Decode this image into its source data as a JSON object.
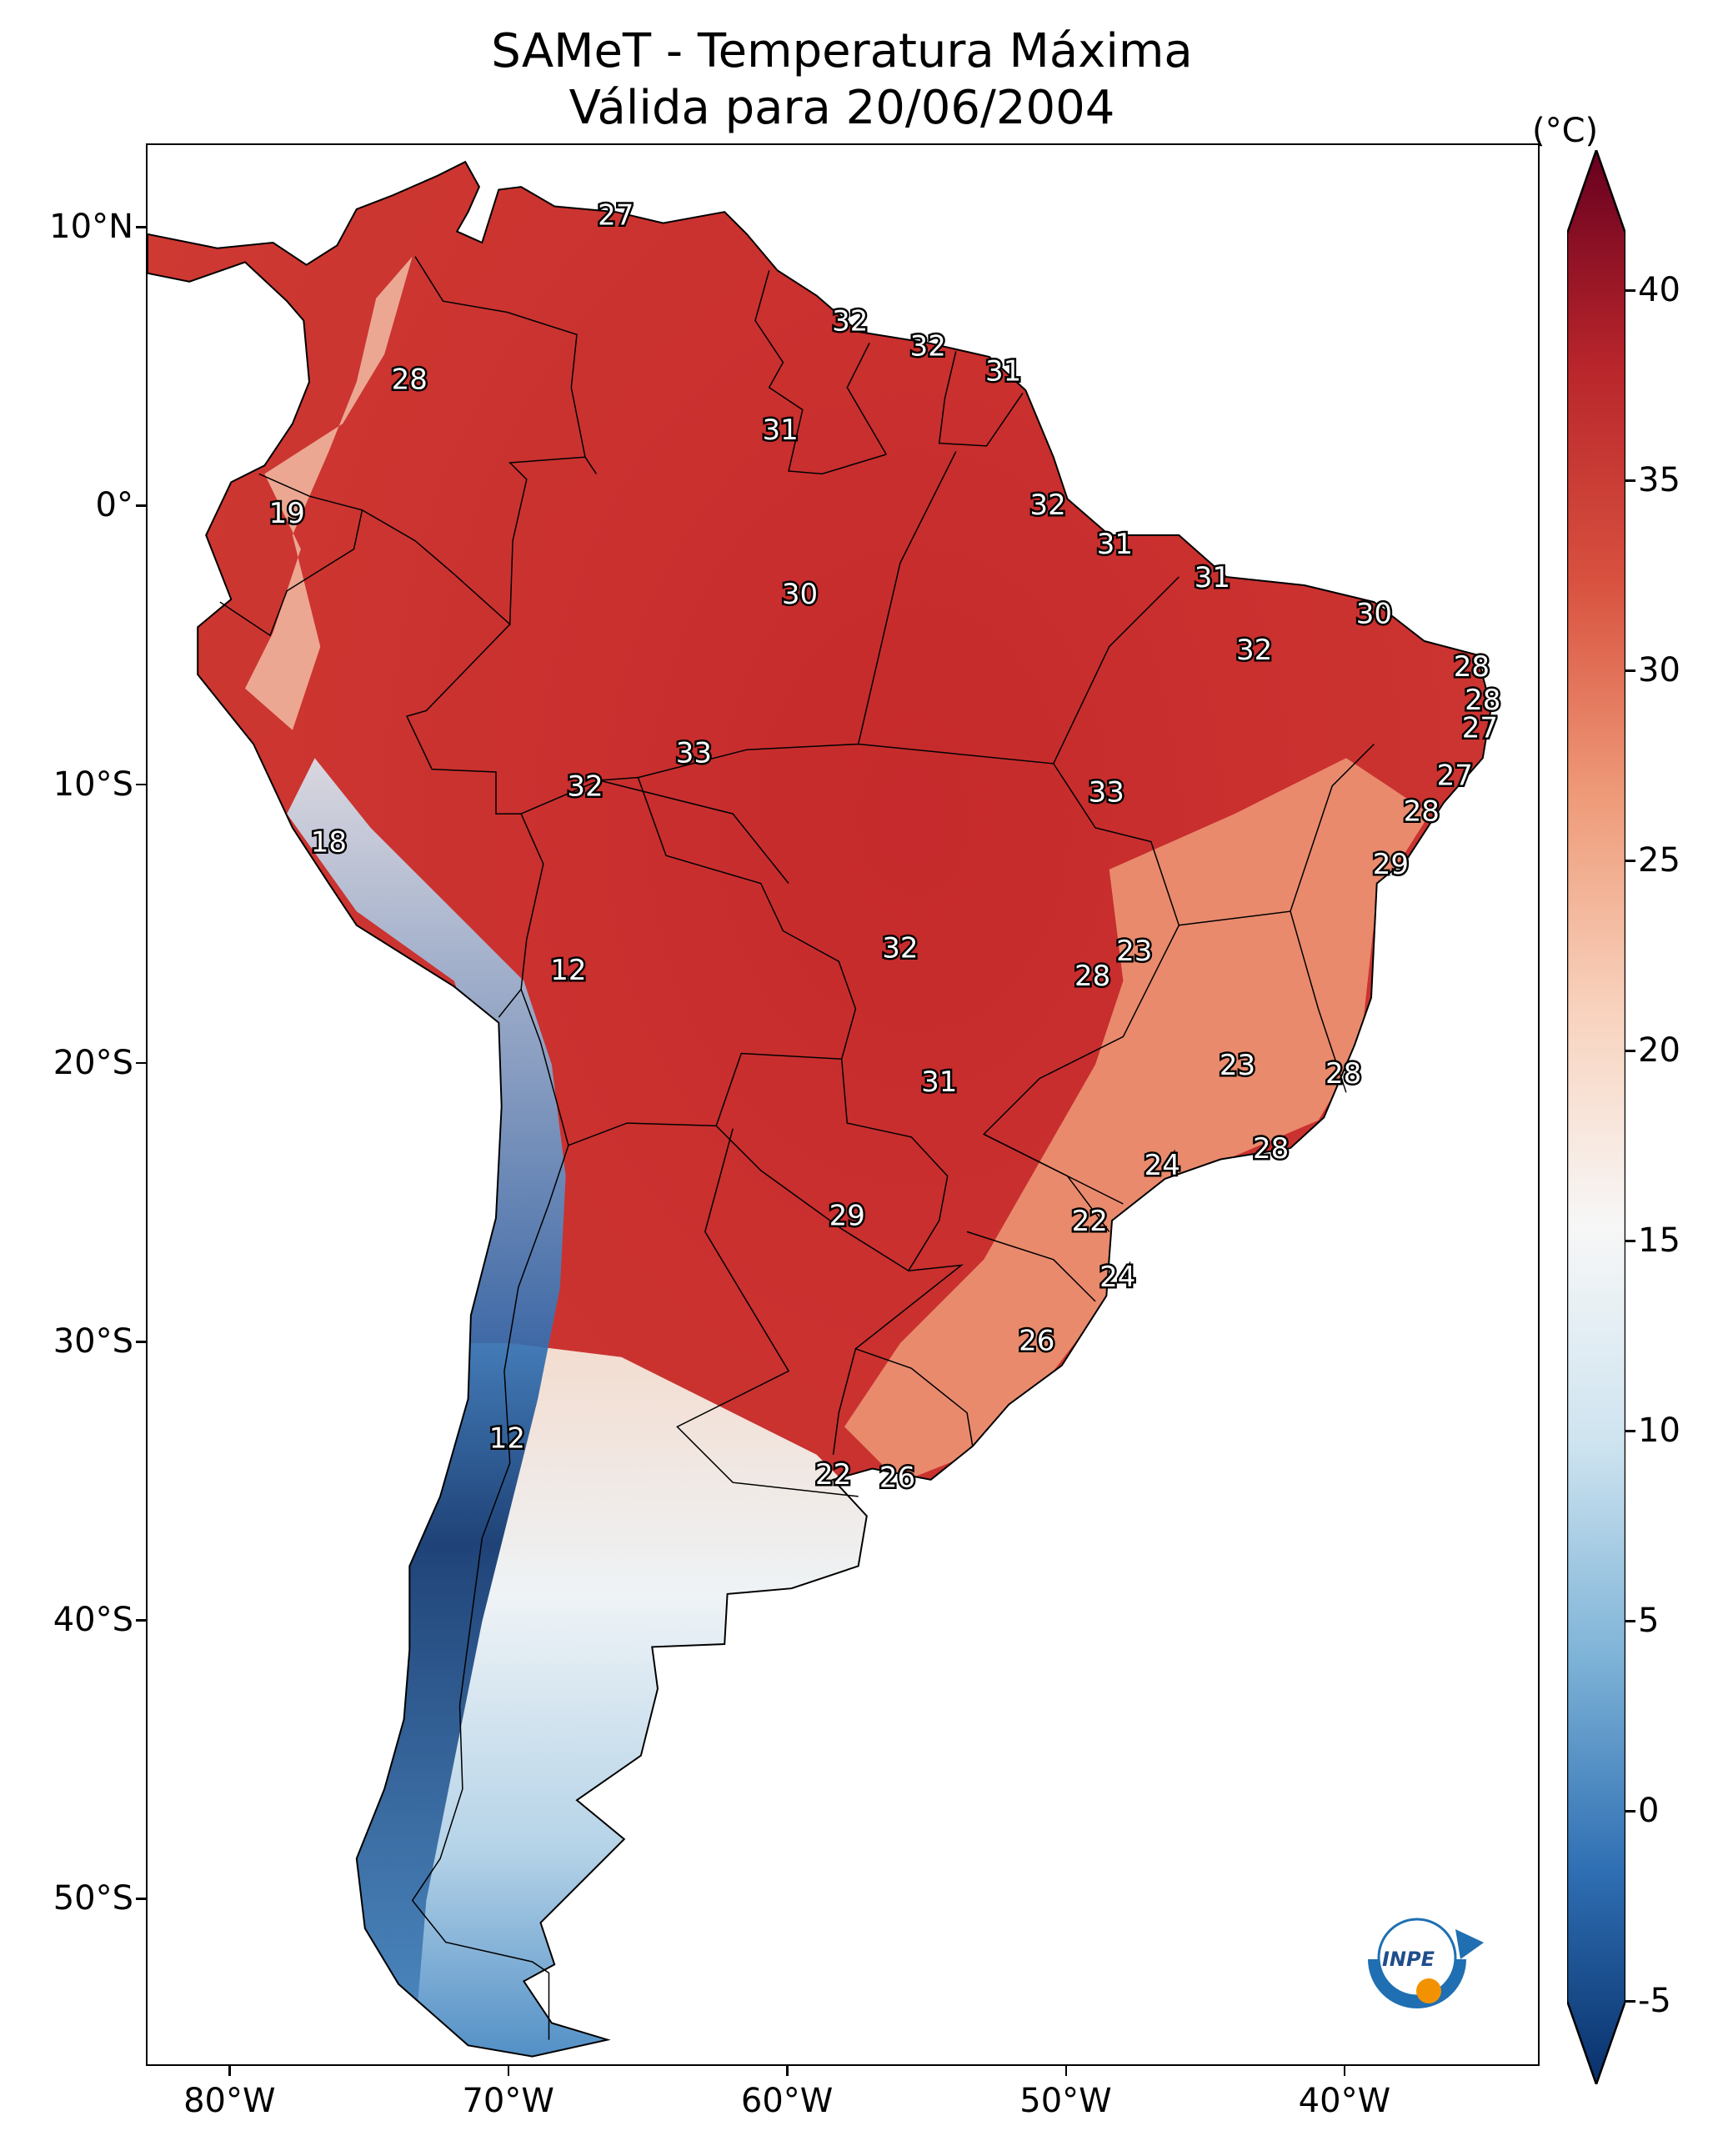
{
  "title": {
    "line1": "SAMeT - Temperatura Máxima",
    "line2": "Válida para 20/06/2004"
  },
  "colorbar": {
    "unit": "(°C)",
    "ticks": [
      "40",
      "35",
      "30",
      "25",
      "20",
      "15",
      "10",
      "5",
      "0",
      "-5"
    ],
    "tick_values": [
      40,
      35,
      30,
      25,
      20,
      15,
      10,
      5,
      0,
      -5
    ],
    "range": [
      -5,
      40
    ],
    "colors": [
      "#08306b",
      "#2f6fb3",
      "#7fb4d8",
      "#cfe4f0",
      "#f7f7f7",
      "#f8d2bd",
      "#ee9a78",
      "#d8513f",
      "#b8252b",
      "#67001f"
    ]
  },
  "axes": {
    "lat_labels": [
      "10°N",
      "0°",
      "10°S",
      "20°S",
      "30°S",
      "40°S",
      "50°S"
    ],
    "lat_values": [
      10,
      0,
      -10,
      -20,
      -30,
      -40,
      -50
    ],
    "lon_labels": [
      "80°W",
      "70°W",
      "60°W",
      "50°W",
      "40°W"
    ],
    "lon_values": [
      -80,
      -70,
      -60,
      -50,
      -40
    ],
    "lon_range": [
      -83,
      -33
    ],
    "lat_range": [
      13,
      -56
    ]
  },
  "temperature_labels": [
    {
      "text": "27",
      "lon": -66.2,
      "lat": 10.5
    },
    {
      "text": "32",
      "lon": -57.8,
      "lat": 6.7
    },
    {
      "text": "32",
      "lon": -55.0,
      "lat": 5.8
    },
    {
      "text": "31",
      "lon": -52.3,
      "lat": 4.9
    },
    {
      "text": "28",
      "lon": -73.6,
      "lat": 4.6
    },
    {
      "text": "31",
      "lon": -60.3,
      "lat": 2.8
    },
    {
      "text": "32",
      "lon": -50.7,
      "lat": 0.1
    },
    {
      "text": "19",
      "lon": -78.0,
      "lat": -0.2
    },
    {
      "text": "31",
      "lon": -48.3,
      "lat": -1.3
    },
    {
      "text": "31",
      "lon": -44.8,
      "lat": -2.5
    },
    {
      "text": "30",
      "lon": -59.6,
      "lat": -3.1
    },
    {
      "text": "30",
      "lon": -39.0,
      "lat": -3.8
    },
    {
      "text": "32",
      "lon": -43.3,
      "lat": -5.1
    },
    {
      "text": "28",
      "lon": -35.5,
      "lat": -5.7
    },
    {
      "text": "28",
      "lon": -35.1,
      "lat": -6.9
    },
    {
      "text": "27",
      "lon": -35.2,
      "lat": -7.9
    },
    {
      "text": "33",
      "lon": -63.4,
      "lat": -8.8
    },
    {
      "text": "27",
      "lon": -36.1,
      "lat": -9.6
    },
    {
      "text": "32",
      "lon": -67.3,
      "lat": -10.0
    },
    {
      "text": "33",
      "lon": -48.6,
      "lat": -10.2
    },
    {
      "text": "28",
      "lon": -37.3,
      "lat": -10.9
    },
    {
      "text": "18",
      "lon": -76.5,
      "lat": -12.0
    },
    {
      "text": "29",
      "lon": -38.4,
      "lat": -12.8
    },
    {
      "text": "32",
      "lon": -56.0,
      "lat": -15.8
    },
    {
      "text": "23",
      "lon": -47.6,
      "lat": -15.9
    },
    {
      "text": "28",
      "lon": -49.1,
      "lat": -16.8
    },
    {
      "text": "12",
      "lon": -67.9,
      "lat": -16.6
    },
    {
      "text": "23",
      "lon": -43.9,
      "lat": -20.0
    },
    {
      "text": "28",
      "lon": -40.1,
      "lat": -20.3
    },
    {
      "text": "31",
      "lon": -54.6,
      "lat": -20.6
    },
    {
      "text": "28",
      "lon": -42.7,
      "lat": -23.0
    },
    {
      "text": "24",
      "lon": -46.6,
      "lat": -23.6
    },
    {
      "text": "22",
      "lon": -49.2,
      "lat": -25.6
    },
    {
      "text": "29",
      "lon": -57.9,
      "lat": -25.4
    },
    {
      "text": "24",
      "lon": -48.2,
      "lat": -27.6
    },
    {
      "text": "26",
      "lon": -51.1,
      "lat": -29.9
    },
    {
      "text": "12",
      "lon": -70.1,
      "lat": -33.4
    },
    {
      "text": "22",
      "lon": -58.4,
      "lat": -34.7
    },
    {
      "text": "26",
      "lon": -56.1,
      "lat": -34.8
    }
  ],
  "logo": {
    "text": "INPE"
  }
}
